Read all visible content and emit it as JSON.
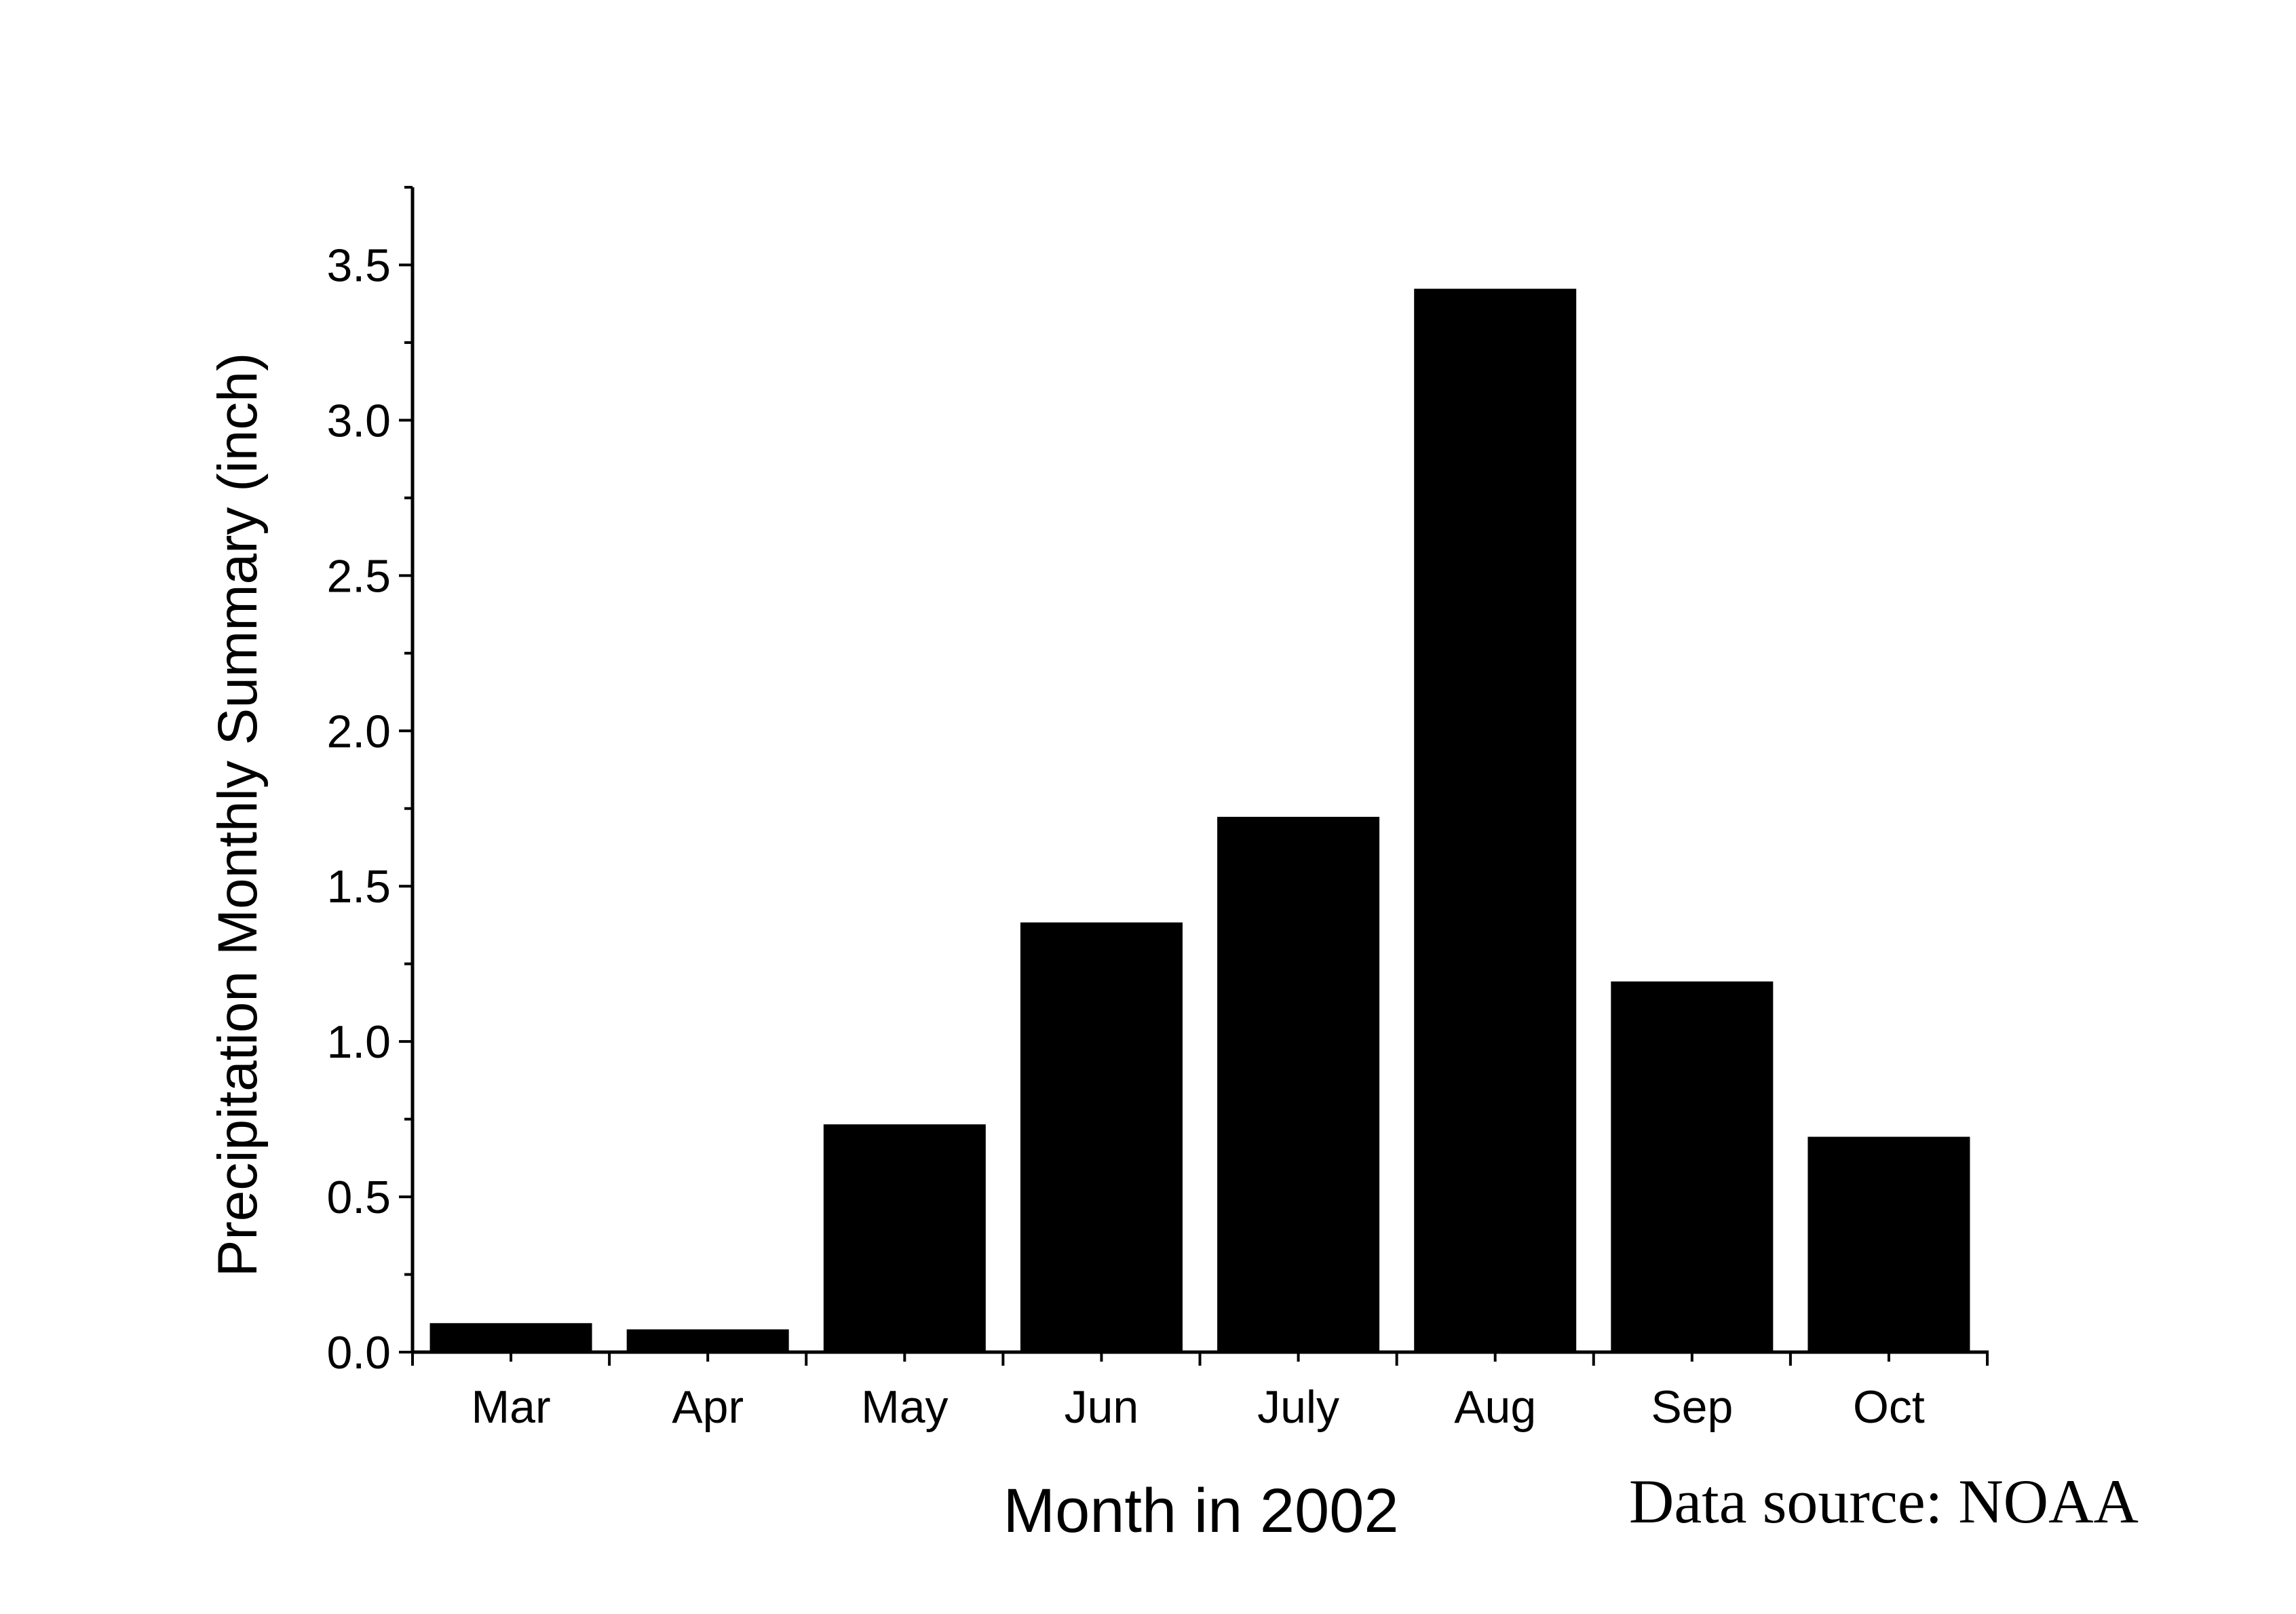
{
  "chart_data": {
    "type": "bar",
    "categories": [
      "Mar",
      "Apr",
      "May",
      "Jun",
      "July",
      "Aug",
      "Sep",
      "Oct"
    ],
    "values": [
      0.09,
      0.07,
      0.73,
      1.38,
      1.72,
      3.42,
      1.19,
      0.69
    ],
    "xlabel": "Month in 2002",
    "ylabel": "Precipitation Monthly Summary (inch)",
    "ylim": [
      0,
      3.75
    ],
    "yticks": [
      "0.0",
      "0.5",
      "1.0",
      "1.5",
      "2.0",
      "2.5",
      "3.0",
      "3.5"
    ],
    "ytick_values": [
      0,
      0.5,
      1.0,
      1.5,
      2.0,
      2.5,
      3.0,
      3.5
    ],
    "y_minor_step": 0.25,
    "bar_color": "#000000",
    "grid": false,
    "legend": "none",
    "annotation": "Data source: NOAA"
  }
}
